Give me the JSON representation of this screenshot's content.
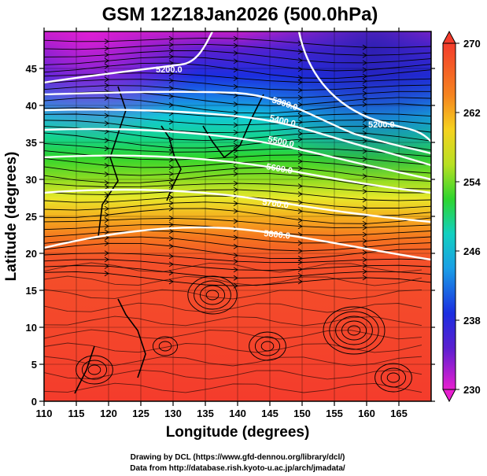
{
  "title": "GSM 12Z18Jan2026 (500.0hPa)",
  "xlabel": "Longitude (degrees)",
  "ylabel": "Latitude  (degrees)",
  "x_ticks": [
    "110",
    "115",
    "120",
    "125",
    "130",
    "135",
    "140",
    "145",
    "150",
    "155",
    "160",
    "165"
  ],
  "y_ticks": [
    "0",
    "5",
    "10",
    "15",
    "20",
    "25",
    "30",
    "35",
    "40",
    "45"
  ],
  "colorbar_ticks": [
    "230",
    "238",
    "246",
    "254",
    "262",
    "270"
  ],
  "contour_labels": [
    "5200.0",
    "5200.0",
    "5300.0",
    "5400.0",
    "5500.0",
    "5600.0",
    "5700.0",
    "5800.0"
  ],
  "credit_line1": "Drawing by DCL (https://www.gfd-dennou.org/library/dcl/)",
  "credit_line2": "Data from http://database.rish.kyoto-u.ac.jp/arch/jmadata/",
  "colors": {
    "magenta": "#d61fd6",
    "blue": "#1b2ee0",
    "cyan": "#10c4d8",
    "green": "#2ed52e",
    "yellow": "#e8e82a",
    "orange": "#f58a1e",
    "red": "#f43c2c"
  }
}
